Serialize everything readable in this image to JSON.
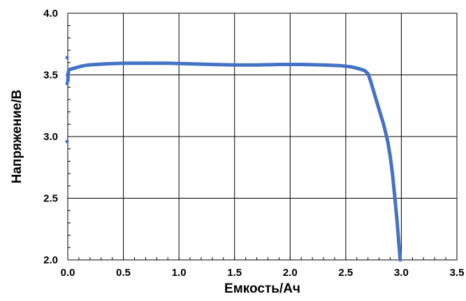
{
  "chart_data": {
    "type": "scatter",
    "title": "",
    "xlabel": "Емкость/Ач",
    "ylabel": "Напряжение/В",
    "xlim": [
      0,
      3.5
    ],
    "ylim": [
      2.0,
      4.0
    ],
    "x_ticks": [
      "0.0",
      "0.5",
      "1.0",
      "1.5",
      "2.0",
      "2.5",
      "3.0",
      "3.5"
    ],
    "y_ticks": [
      "2.0",
      "2.5",
      "3.0",
      "3.5",
      "4.0"
    ],
    "grid": true,
    "legend": "none",
    "series_color": "#4472c4",
    "series": [
      {
        "x": [
          0.0,
          0.005,
          0.01,
          0.02,
          0.04,
          0.08,
          0.12,
          0.18,
          0.25,
          0.35,
          0.5,
          0.7,
          0.9,
          1.1,
          1.3,
          1.5,
          1.7,
          1.9,
          2.1,
          2.3,
          2.45,
          2.55,
          2.62,
          2.67,
          2.7,
          2.72,
          2.74,
          2.76,
          2.78,
          2.8,
          2.82,
          2.84,
          2.86,
          2.88,
          2.9,
          2.92,
          2.94,
          2.96,
          2.975,
          2.985,
          2.99
        ],
        "y": [
          3.45,
          3.52,
          3.54,
          3.545,
          3.55,
          3.56,
          3.57,
          3.58,
          3.585,
          3.59,
          3.595,
          3.595,
          3.595,
          3.59,
          3.585,
          3.58,
          3.58,
          3.585,
          3.585,
          3.58,
          3.575,
          3.565,
          3.55,
          3.535,
          3.51,
          3.46,
          3.4,
          3.34,
          3.28,
          3.22,
          3.16,
          3.1,
          3.03,
          2.95,
          2.84,
          2.7,
          2.52,
          2.33,
          2.16,
          2.06,
          2.0
        ]
      },
      {
        "x": [
          0.0,
          0.0,
          0.0,
          0.003
        ],
        "y": [
          3.64,
          2.96,
          3.43,
          3.5
        ]
      }
    ]
  }
}
